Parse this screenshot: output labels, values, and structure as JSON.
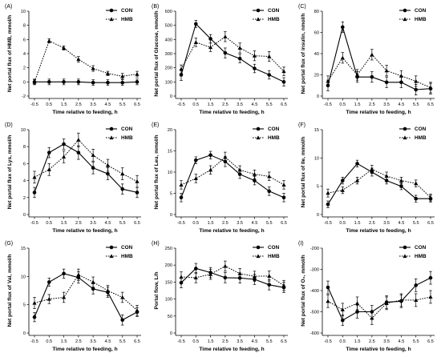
{
  "figure": {
    "chart_data": [
      {
        "panel": "(A)",
        "type": "line",
        "xlabel": "Time relative to feeding, h",
        "ylabel": "Net portal flux of HMB, mmol/h",
        "x": [
          "-0.5",
          "0.5",
          "1.5",
          "2.5",
          "3.5",
          "4.5",
          "5.5",
          "6.5"
        ],
        "ylim": [
          -2,
          10
        ],
        "yticks": [
          "-2",
          "0",
          "2",
          "4",
          "6",
          "8",
          "10"
        ],
        "legend": "top-right",
        "series": [
          {
            "name": "CON",
            "marker": "circle",
            "values": [
              0.0,
              0.0,
              0.0,
              0.0,
              -0.1,
              -0.1,
              -0.1,
              0.0
            ],
            "errors": [
              0.4,
              0.4,
              0.4,
              0.4,
              0.4,
              0.4,
              0.4,
              0.4
            ]
          },
          {
            "name": "HMB",
            "marker": "triangle",
            "values": [
              0.0,
              5.8,
              4.8,
              3.2,
              1.9,
              1.2,
              0.8,
              1.1
            ],
            "errors": [
              0.3,
              0.3,
              0.3,
              0.4,
              0.4,
              0.3,
              0.4,
              0.4
            ]
          }
        ]
      },
      {
        "panel": "(B)",
        "type": "line",
        "xlabel": "Time relative to feeding, h",
        "ylabel": "Net portal flux of Glucose, mmol/h",
        "x": [
          "-0.5",
          "0.5",
          "1.5",
          "2.5",
          "3.5",
          "4.5",
          "5.5",
          "6.5"
        ],
        "ylim": [
          0,
          600
        ],
        "yticks": [
          "0",
          "100",
          "200",
          "300",
          "400",
          "500",
          "600"
        ],
        "legend": "top-right",
        "series": [
          {
            "name": "CON",
            "marker": "circle",
            "values": [
              150,
              510,
              405,
              305,
              265,
              195,
              150,
              100
            ],
            "errors": [
              40,
              25,
              30,
              35,
              30,
              30,
              30,
              30
            ]
          },
          {
            "name": "HMB",
            "marker": "triangle",
            "values": [
              190,
              380,
              345,
              420,
              340,
              285,
              280,
              175
            ],
            "errors": [
              30,
              30,
              30,
              35,
              35,
              35,
              35,
              30
            ]
          }
        ]
      },
      {
        "panel": "(C)",
        "type": "line",
        "xlabel": "Time relative to feeding, h",
        "ylabel": "Net portal flux of insulin, nmol/h",
        "x": [
          "-0.5",
          "0.5",
          "1.5",
          "2.5",
          "3.5",
          "4.5",
          "5.5",
          "6.5"
        ],
        "ylim": [
          0,
          80
        ],
        "yticks": [
          "0",
          "20",
          "40",
          "60",
          "80"
        ],
        "legend": "top-right",
        "series": [
          {
            "name": "CON",
            "marker": "circle",
            "values": [
              10,
              65,
              18,
              18,
              13,
              13,
              6,
              7
            ],
            "errors": [
              5,
              5,
              5,
              5,
              5,
              5,
              5,
              5
            ]
          },
          {
            "name": "HMB",
            "marker": "triangle",
            "values": [
              14,
              36,
              20,
              39,
              24,
              19,
              14,
              8
            ],
            "errors": [
              5,
              5,
              5,
              5,
              5,
              5,
              5,
              5
            ]
          }
        ]
      },
      {
        "panel": "(D)",
        "type": "line",
        "xlabel": "Time relative to feeding, h",
        "ylabel": "Net portal flux of Lys, mmol/h",
        "x": [
          "-0.5",
          "0.5",
          "1.5",
          "2.5",
          "3.5",
          "4.5",
          "5.5",
          "6.5"
        ],
        "ylim": [
          0,
          10
        ],
        "yticks": [
          "0",
          "2",
          "4",
          "6",
          "8",
          "10"
        ],
        "legend": "top-right",
        "series": [
          {
            "name": "CON",
            "marker": "circle",
            "values": [
              2.6,
              7.3,
              8.3,
              7.3,
              5.5,
              4.8,
              3.0,
              2.6
            ],
            "errors": [
              0.6,
              0.6,
              0.6,
              0.8,
              0.7,
              0.7,
              0.6,
              0.6
            ]
          },
          {
            "name": "HMB",
            "marker": "triangle",
            "values": [
              4.4,
              5.3,
              6.8,
              8.8,
              7.0,
              5.8,
              4.8,
              3.9
            ],
            "errors": [
              0.7,
              0.7,
              0.7,
              0.8,
              0.7,
              0.7,
              0.7,
              0.7
            ]
          }
        ]
      },
      {
        "panel": "(E)",
        "type": "line",
        "xlabel": "Time relative to feeding, h",
        "ylabel": "Net portal flux of Leu, mmol/h",
        "x": [
          "-0.5",
          "0.5",
          "1.5",
          "2.5",
          "3.5",
          "4.5",
          "5.5",
          "6.5"
        ],
        "ylim": [
          0,
          20
        ],
        "yticks": [
          "0",
          "5",
          "10",
          "15",
          "20"
        ],
        "legend": "top-right",
        "series": [
          {
            "name": "CON",
            "marker": "circle",
            "values": [
              4.0,
              12.8,
              14.0,
              12.5,
              9.5,
              8.0,
              5.5,
              4.0
            ],
            "errors": [
              1.0,
              0.8,
              0.9,
              1.2,
              1.0,
              1.0,
              1.0,
              1.0
            ]
          },
          {
            "name": "HMB",
            "marker": "triangle",
            "values": [
              7.0,
              8.5,
              10.5,
              13.5,
              10.5,
              9.5,
              9.0,
              7.0
            ],
            "errors": [
              1.0,
              1.0,
              1.0,
              1.2,
              1.0,
              1.0,
              1.0,
              1.0
            ]
          }
        ]
      },
      {
        "panel": "(F)",
        "type": "line",
        "xlabel": "Time relative to feeding, h",
        "ylabel": "Net portal flux of Ile, mmol/h",
        "x": [
          "-0.5",
          "0.5",
          "1.5",
          "2.5",
          "3.5",
          "4.5",
          "5.5",
          "6.5"
        ],
        "ylim": [
          0,
          15
        ],
        "yticks": [
          "0",
          "5",
          "10",
          "15"
        ],
        "legend": "top-right",
        "series": [
          {
            "name": "CON",
            "marker": "circle",
            "values": [
              1.8,
              6.0,
              9.0,
              7.5,
              6.0,
              5.0,
              2.8,
              2.8
            ],
            "errors": [
              0.6,
              0.6,
              0.6,
              0.7,
              0.6,
              0.6,
              0.6,
              0.6
            ]
          },
          {
            "name": "HMB",
            "marker": "triangle",
            "values": [
              3.8,
              4.3,
              6.0,
              8.0,
              6.8,
              6.0,
              5.5,
              3.0
            ],
            "errors": [
              0.7,
              0.6,
              0.6,
              0.7,
              0.7,
              0.6,
              0.6,
              0.6
            ]
          }
        ]
      },
      {
        "panel": "(G)",
        "type": "line",
        "xlabel": "Time relative to feeding, h",
        "ylabel": "Net portal flux of Val, mmol/h",
        "x": [
          "-0.5",
          "0.5",
          "1.5",
          "2.5",
          "3.5",
          "4.5",
          "5.5",
          "6.5"
        ],
        "ylim": [
          0,
          15
        ],
        "yticks": [
          "0",
          "5",
          "10",
          "15"
        ],
        "legend": "top-right",
        "series": [
          {
            "name": "CON",
            "marker": "circle",
            "values": [
              2.8,
              9.0,
              10.5,
              9.8,
              7.8,
              7.2,
              2.3,
              3.7
            ],
            "errors": [
              0.8,
              0.7,
              0.8,
              1.0,
              0.9,
              0.9,
              0.9,
              0.8
            ]
          },
          {
            "name": "HMB",
            "marker": "triangle",
            "values": [
              5.3,
              6.0,
              6.3,
              10.3,
              9.0,
              7.5,
              6.3,
              4.0
            ],
            "errors": [
              1.0,
              0.8,
              0.9,
              1.0,
              0.9,
              0.9,
              0.9,
              0.9
            ]
          }
        ]
      },
      {
        "panel": "(H)",
        "type": "line",
        "xlabel": "Time relative to feeding, h",
        "ylabel": "Portal flow, L/h",
        "x": [
          "-0.5",
          "0.5",
          "1.5",
          "2.5",
          "3.5",
          "4.5",
          "5.5",
          "6.5"
        ],
        "ylim": [
          0,
          250
        ],
        "yticks": [
          "0",
          "50",
          "100",
          "150",
          "200",
          "250"
        ],
        "legend": "top-right",
        "series": [
          {
            "name": "CON",
            "marker": "circle",
            "values": [
              148,
              190,
              178,
              163,
              162,
              158,
              142,
              134
            ],
            "errors": [
              15,
              15,
              15,
              15,
              15,
              15,
              15,
              15
            ]
          },
          {
            "name": "HMB",
            "marker": "triangle",
            "values": [
              165,
              163,
              173,
              197,
              175,
              167,
              168,
              140
            ],
            "errors": [
              15,
              15,
              15,
              15,
              15,
              15,
              15,
              15
            ]
          }
        ]
      },
      {
        "panel": "(I)",
        "type": "line",
        "xlabel": "Time relative to feeding, h",
        "ylabel": "Net portal flux of O₂, mmol/h",
        "x": [
          "-0.5",
          "0.5",
          "1.5",
          "2.5",
          "3.5",
          "4.5",
          "5.5",
          "6.5"
        ],
        "ylim": [
          -600,
          -200
        ],
        "yticks": [
          "-600",
          "-500",
          "-400",
          "-300",
          "-200"
        ],
        "legend": "top-right",
        "series": [
          {
            "name": "CON",
            "marker": "circle",
            "values": [
              -385,
              -540,
              -500,
              -500,
              -455,
              -450,
              -375,
              -340
            ],
            "errors": [
              30,
              25,
              30,
              30,
              30,
              30,
              30,
              30
            ]
          },
          {
            "name": "HMB",
            "marker": "triangle",
            "values": [
              -450,
              -490,
              -460,
              -530,
              -460,
              -445,
              -445,
              -430
            ],
            "errors": [
              30,
              30,
              30,
              30,
              30,
              30,
              30,
              30
            ]
          }
        ]
      }
    ]
  }
}
